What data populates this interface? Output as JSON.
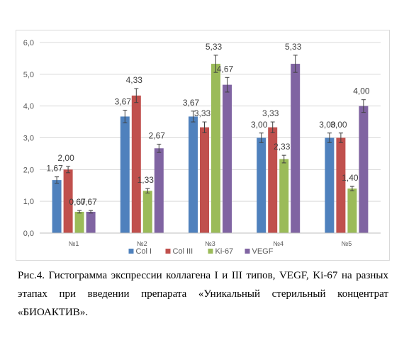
{
  "chart_data": {
    "type": "bar",
    "categories": [
      "№1",
      "№2",
      "№3",
      "№4",
      "№5"
    ],
    "series": [
      {
        "name": "Col I",
        "color": "#4f81bd",
        "values": [
          1.67,
          3.67,
          3.67,
          3.0,
          3.0
        ],
        "labels": [
          "1,67",
          "3,67",
          "3,67",
          "3,00",
          "3,00"
        ],
        "errors": [
          0.1,
          0.2,
          0.17,
          0.15,
          0.15
        ]
      },
      {
        "name": "Col III",
        "color": "#c0504d",
        "values": [
          2.0,
          4.33,
          3.33,
          3.33,
          3.0
        ],
        "labels": [
          "2,00",
          "4,33",
          "3,33",
          "3,33",
          "3,00"
        ],
        "errors": [
          0.1,
          0.22,
          0.17,
          0.17,
          0.15
        ]
      },
      {
        "name": "Ki-67",
        "color": "#9bbb59",
        "values": [
          0.67,
          1.33,
          5.33,
          2.33,
          1.4
        ],
        "labels": [
          "0,67",
          "1,33",
          "5,33",
          "2,33",
          "1,40"
        ],
        "errors": [
          0.04,
          0.07,
          0.27,
          0.12,
          0.07
        ]
      },
      {
        "name": "VEGF",
        "color": "#8064a2",
        "values": [
          0.67,
          2.67,
          4.67,
          5.33,
          4.0
        ],
        "labels": [
          "0,67",
          "2,67",
          "4,67",
          "5,33",
          "4,00"
        ],
        "errors": [
          0.04,
          0.13,
          0.23,
          0.27,
          0.2
        ]
      }
    ],
    "ylim": [
      0,
      6
    ],
    "yticks": [
      "0,0",
      "1,0",
      "2,0",
      "3,0",
      "4,0",
      "5,0",
      "6,0"
    ],
    "grid": true,
    "legend_position": "bottom",
    "title": "",
    "xlabel": "",
    "ylabel": ""
  },
  "caption": "Рис.4. Гистограмма экспрессии коллагена I и III типов, VEGF, Ki-67 на разных этапах при введении препарата «Уникальный стерильный концентрат «БИОАКТИВ»."
}
